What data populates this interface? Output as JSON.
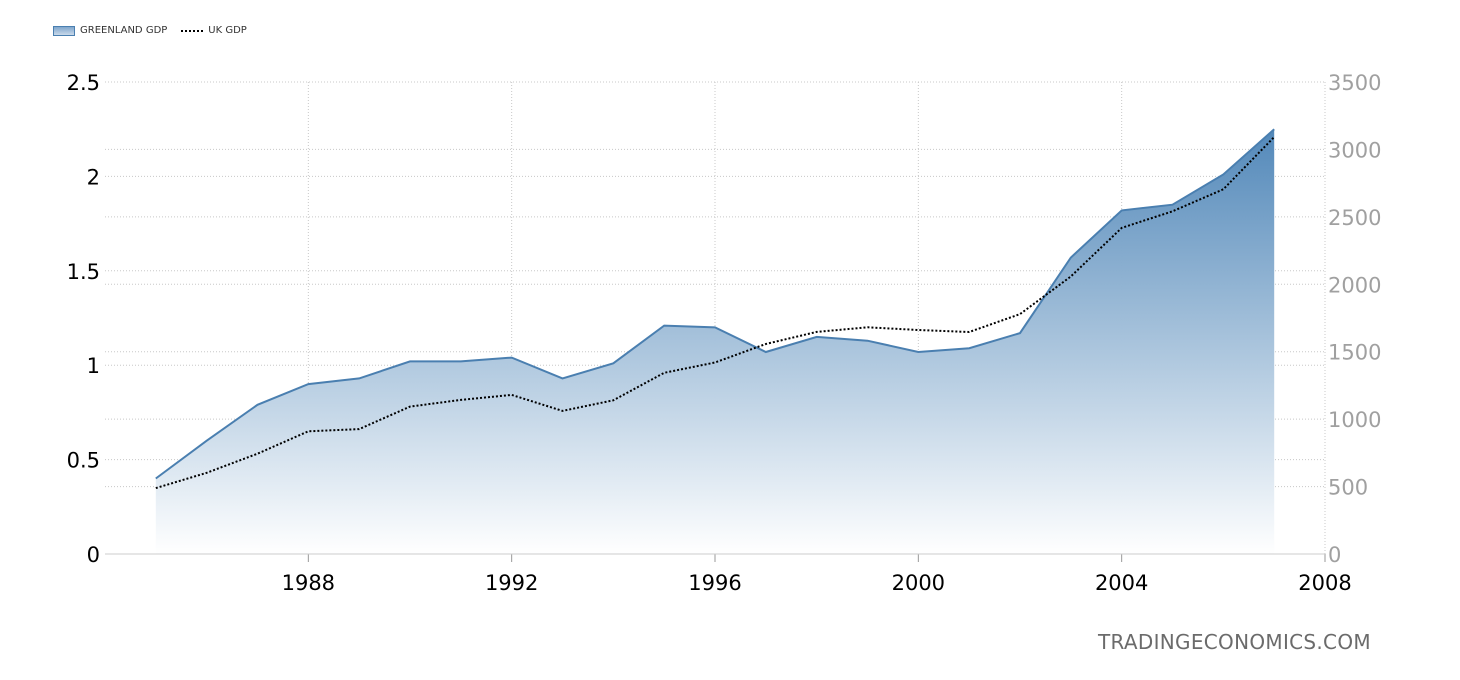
{
  "legend": {
    "greenland_label": "GREENLAND GDP",
    "uk_label": "UK GDP"
  },
  "watermark": "TRADINGECONOMICS.COM",
  "colors": {
    "area_line": "#4a7fb0",
    "area_fill_top": "#4f86b8",
    "area_fill_bottom": "#ffffff",
    "uk_line": "#000000",
    "grid": "#c8c8c8",
    "left_axis_text": "#000000",
    "right_axis_text": "#a0a0a0"
  },
  "chart_data": {
    "type": "area",
    "x_ticks": [
      "1988",
      "1992",
      "1996",
      "2000",
      "2004",
      "2008"
    ],
    "xlim": [
      1984.0,
      2008.0
    ],
    "y_left": {
      "ticks": [
        "0",
        "0.5",
        "1",
        "1.5",
        "2",
        "2.5"
      ],
      "lim": [
        0,
        2.5
      ]
    },
    "y_right": {
      "ticks": [
        "0",
        "500",
        "1000",
        "1500",
        "2000",
        "2500",
        "3000",
        "3500"
      ],
      "lim": [
        0,
        3500
      ]
    },
    "grid": true,
    "legend_position": "top-left",
    "series": [
      {
        "name": "GREENLAND GDP",
        "type": "area",
        "axis": "left",
        "x": [
          1985,
          1986,
          1987,
          1988,
          1989,
          1990,
          1991,
          1992,
          1993,
          1994,
          1995,
          1996,
          1997,
          1998,
          1999,
          2000,
          2001,
          2002,
          2003,
          2004,
          2005,
          2006,
          2007
        ],
        "values": [
          0.4,
          0.6,
          0.79,
          0.9,
          0.93,
          1.02,
          1.02,
          1.04,
          0.93,
          1.01,
          1.21,
          1.2,
          1.07,
          1.15,
          1.13,
          1.07,
          1.09,
          1.17,
          1.57,
          1.82,
          1.85,
          2.01,
          2.25
        ]
      },
      {
        "name": "UK GDP",
        "type": "line",
        "axis": "right",
        "x": [
          1985,
          1986,
          1987,
          1988,
          1989,
          1990,
          1991,
          1992,
          1993,
          1994,
          1995,
          1996,
          1997,
          1998,
          1999,
          2000,
          2001,
          2002,
          2003,
          2004,
          2005,
          2006,
          2007
        ],
        "values": [
          489,
          602,
          744,
          910,
          926,
          1093,
          1143,
          1180,
          1061,
          1140,
          1344,
          1420,
          1557,
          1647,
          1681,
          1661,
          1646,
          1779,
          2058,
          2418,
          2541,
          2704,
          3092
        ]
      }
    ]
  }
}
